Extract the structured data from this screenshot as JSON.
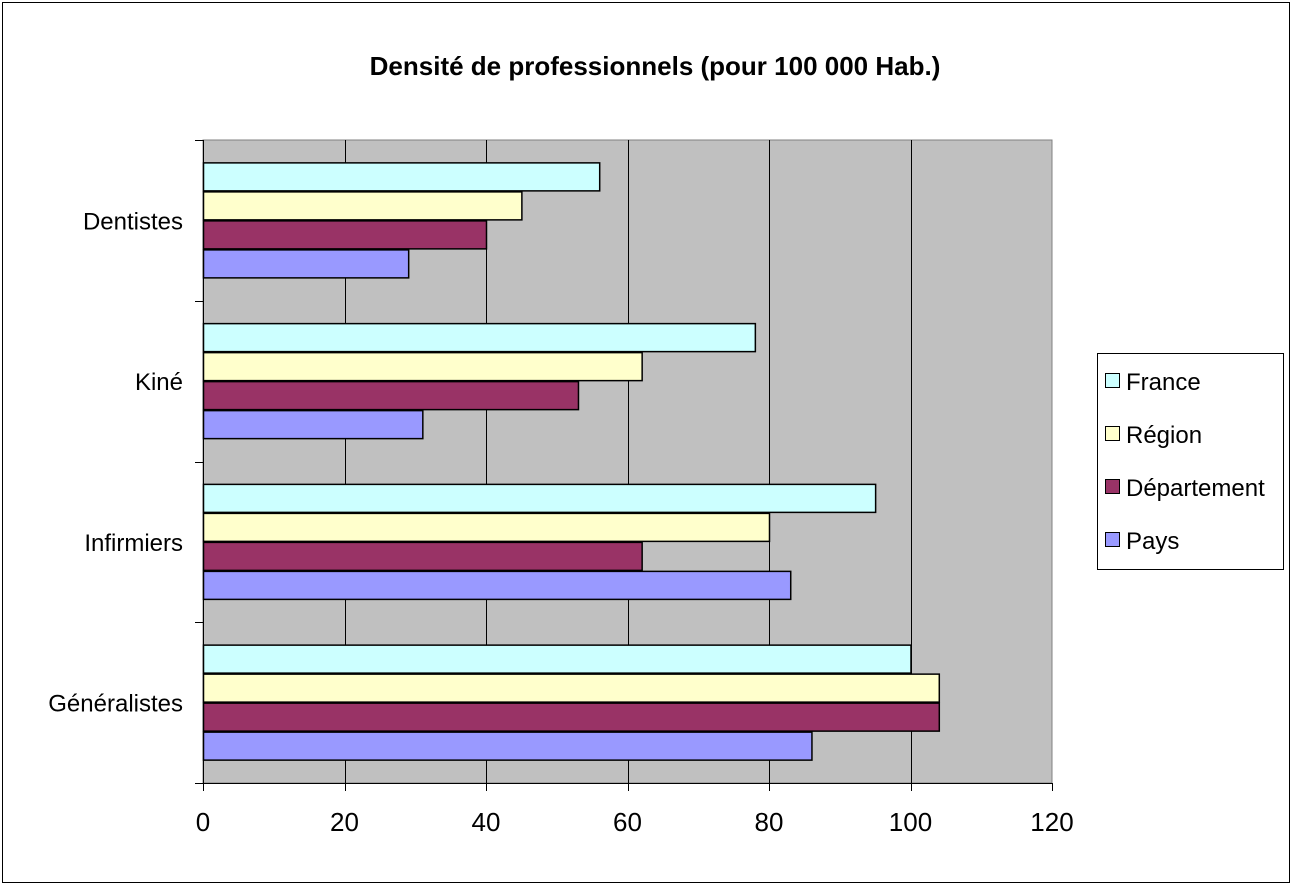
{
  "chart_data": {
    "type": "bar",
    "orientation": "horizontal",
    "title": "Densité de professionnels (pour 100 000 Hab.)",
    "xlabel": "",
    "ylabel": "",
    "xlim": [
      0,
      120
    ],
    "x_ticks": [
      0,
      20,
      40,
      60,
      80,
      100,
      120
    ],
    "grid": true,
    "legend_position": "right",
    "categories": [
      "Dentistes",
      "Kiné",
      "Infirmiers",
      "Généralistes"
    ],
    "series": [
      {
        "name": "France",
        "color": "#ccffff",
        "values": [
          56,
          78,
          95,
          100
        ]
      },
      {
        "name": "Région",
        "color": "#ffffcc",
        "values": [
          45,
          62,
          80,
          104
        ]
      },
      {
        "name": "Département",
        "color": "#993366",
        "values": [
          40,
          53,
          62,
          104
        ]
      },
      {
        "name": "Pays",
        "color": "#9999ff",
        "values": [
          29,
          31,
          83,
          86
        ]
      }
    ],
    "plot_background": "#c0c0c0"
  }
}
